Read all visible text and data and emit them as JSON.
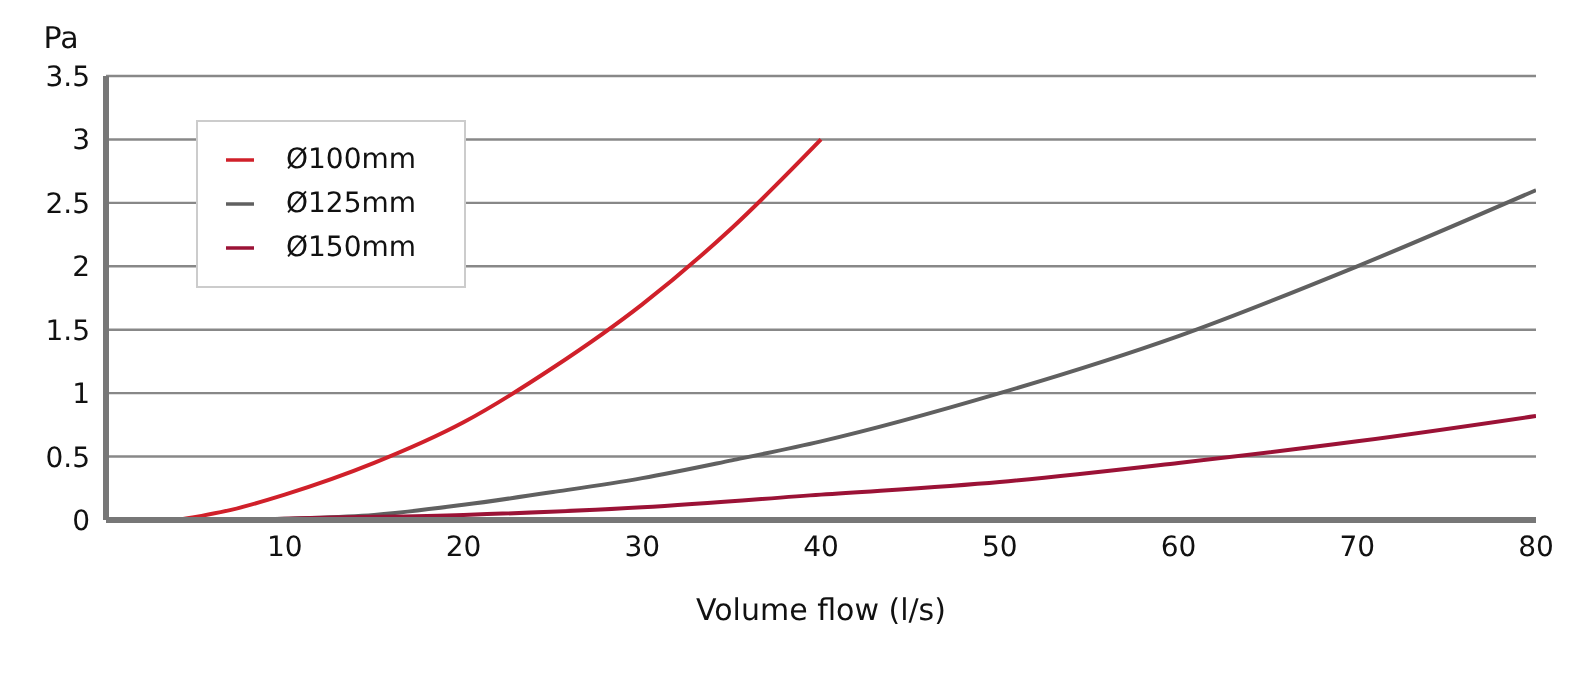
{
  "chart_data": {
    "type": "line",
    "xlabel": "Volume flow (l/s)",
    "ylabel": "Pa",
    "xlim": [
      0,
      80
    ],
    "xticks": [
      10,
      20,
      30,
      40,
      50,
      60,
      70,
      80
    ],
    "ylim": [
      0,
      3.5
    ],
    "yticks": [
      0,
      0.5,
      1,
      1.5,
      2,
      2.5,
      3,
      3.5
    ],
    "grid": "y",
    "legend": "top left",
    "marker": "none",
    "line_style": "solid",
    "series": [
      {
        "name": "Ø100mm",
        "color": "#d0202a",
        "x": [
          4,
          7,
          10,
          15,
          20,
          25,
          30,
          35,
          40
        ],
        "values": [
          0,
          0.08,
          0.2,
          0.45,
          0.77,
          1.2,
          1.7,
          2.3,
          3.0
        ]
      },
      {
        "name": "Ø125mm",
        "color": "#606060",
        "x": [
          8,
          10,
          15,
          20,
          25,
          30,
          35,
          40,
          50,
          60,
          70,
          80
        ],
        "values": [
          0,
          0.01,
          0.04,
          0.12,
          0.22,
          0.33,
          0.47,
          0.62,
          1.0,
          1.45,
          2.0,
          2.6
        ]
      },
      {
        "name": "Ø150mm",
        "color": "#9b1236",
        "x": [
          8,
          10,
          20,
          30,
          40,
          50,
          60,
          70,
          80
        ],
        "values": [
          0,
          0.01,
          0.04,
          0.1,
          0.2,
          0.3,
          0.45,
          0.62,
          0.82
        ]
      }
    ]
  }
}
